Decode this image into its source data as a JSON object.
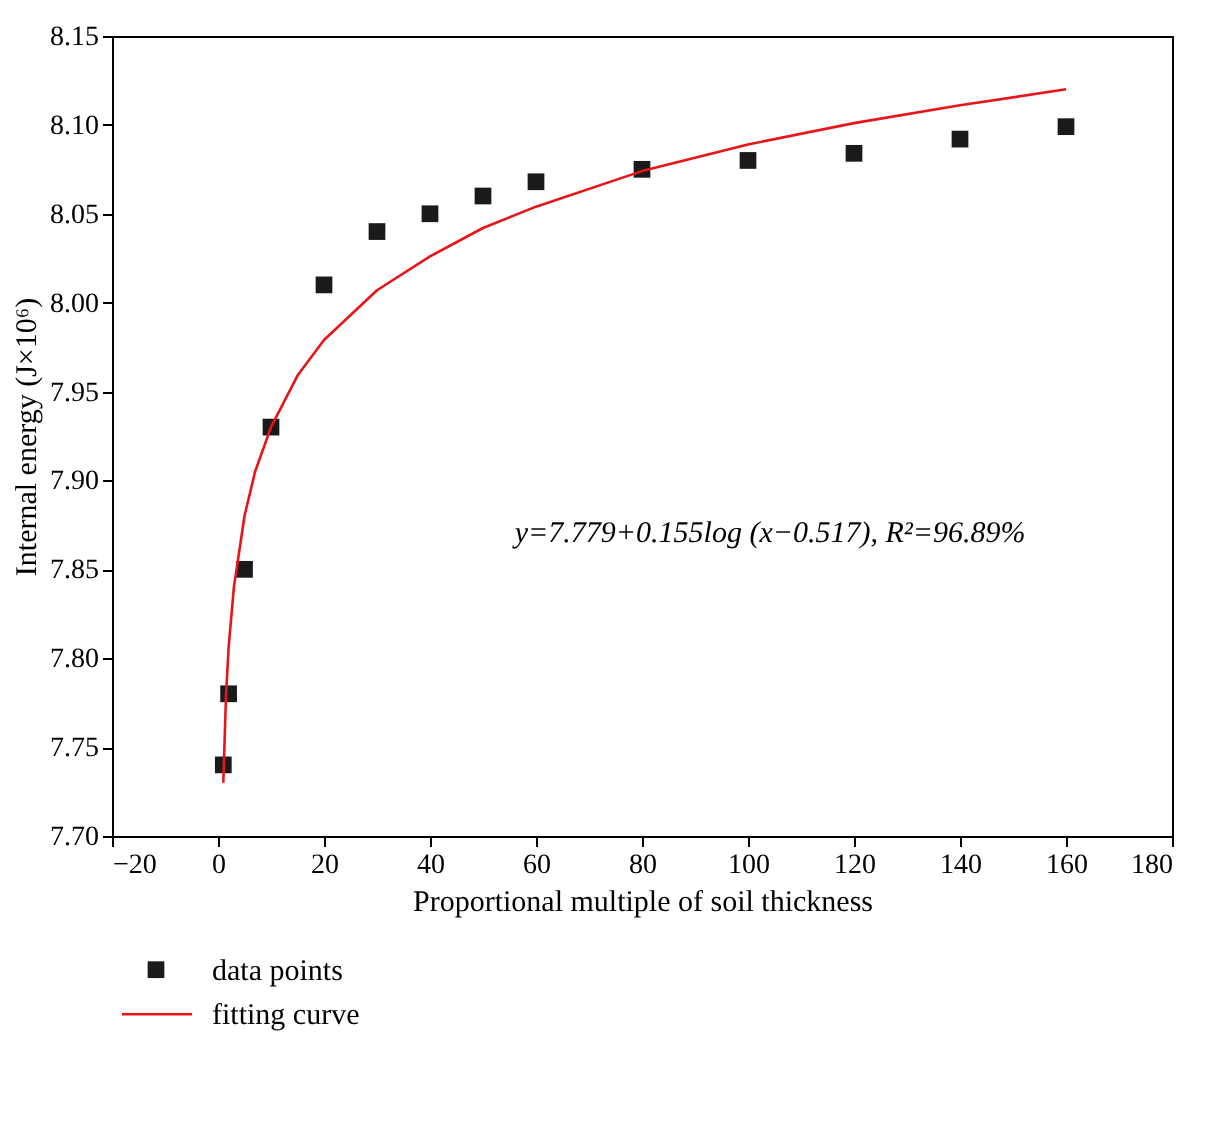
{
  "chart_data": {
    "type": "scatter",
    "xlabel": "Proportional multiple of soil thickness",
    "ylabel": "Internal energy (J×10⁶)",
    "xlim": [
      -20,
      180
    ],
    "xticks": [
      -20,
      0,
      20,
      40,
      60,
      80,
      100,
      120,
      140,
      160,
      180
    ],
    "ylim": [
      7.7,
      8.15
    ],
    "yticks": [
      {
        "value": 7.7,
        "label": "7.70"
      },
      7.75,
      {
        "value": 7.8,
        "label": "7.80"
      },
      7.85,
      {
        "value": 7.9,
        "label": "7.90"
      },
      7.95,
      {
        "value": 8.0,
        "label": "8.00"
      },
      8.05,
      {
        "value": 8.1,
        "label": "8.10"
      },
      8.15
    ],
    "grid": false,
    "legend": "bottom",
    "annotations": [
      "y=7.779+0.155log (x−0.517), R²=96.89%"
    ],
    "series": [
      {
        "name": "data points",
        "marker": "square",
        "color": "#1a1a1a",
        "x": [
          1,
          2,
          5,
          10,
          20,
          30,
          40,
          50,
          60,
          80,
          100,
          120,
          140,
          160
        ],
        "values": [
          7.74,
          7.78,
          7.85,
          7.93,
          8.01,
          8.04,
          8.05,
          8.06,
          8.068,
          8.075,
          8.08,
          8.084,
          8.092,
          8.099
        ]
      },
      {
        "name": "fitting curve",
        "type": "line",
        "marker": "none",
        "line_style": "solid",
        "color": "#e8141a",
        "x": [
          1,
          1.5,
          2,
          3,
          5,
          7,
          10,
          15,
          20,
          30,
          40,
          50,
          60,
          80,
          100,
          120,
          140,
          160
        ],
        "values": [
          7.73,
          7.778,
          7.806,
          7.84,
          7.88,
          7.905,
          7.93,
          7.959,
          7.979,
          8.007,
          8.026,
          8.042,
          8.054,
          8.074,
          8.089,
          8.101,
          8.111,
          8.12
        ]
      }
    ]
  }
}
